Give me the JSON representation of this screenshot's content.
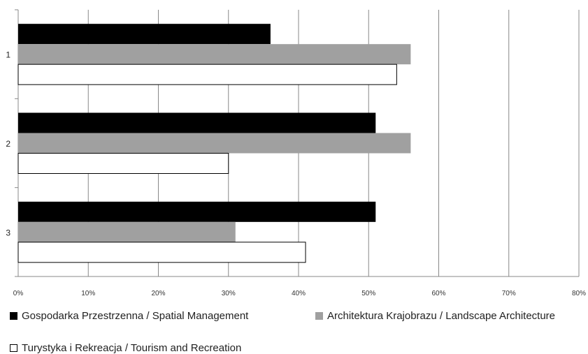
{
  "chart_data": {
    "type": "bar",
    "orientation": "horizontal",
    "categories": [
      "1",
      "2",
      "3"
    ],
    "series": [
      {
        "name": "Gospodarka Przestrzenna / Spatial Management",
        "values": [
          36,
          51,
          51
        ],
        "color": "#000000"
      },
      {
        "name": "Architektura Krajobrazu / Landscape Architecture",
        "values": [
          56,
          56,
          31
        ],
        "color": "#a0a0a0"
      },
      {
        "name": "Turystyka i Rekreacja / Tourism and Recreation",
        "values": [
          54,
          30,
          41
        ],
        "color": "#ffffff"
      }
    ],
    "x_ticks": [
      "0%",
      "10%",
      "20%",
      "30%",
      "40%",
      "50%",
      "60%",
      "70%",
      "80%"
    ],
    "xlim": [
      0,
      80
    ],
    "title": "",
    "xlabel": "",
    "ylabel": "",
    "grid": "vertical",
    "legend_position": "bottom"
  }
}
